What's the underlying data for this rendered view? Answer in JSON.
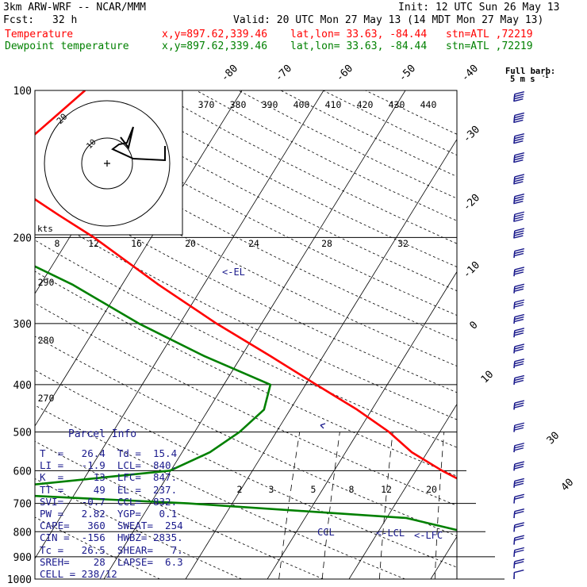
{
  "header": {
    "model": "3km ARW-WRF -- NCAR/MMM",
    "init": "Init: 12 UTC Sun 26 May 13",
    "fcst_label": "Fcst:",
    "fcst_value": "32 h",
    "valid": "Valid: 20 UTC Mon 27 May 13 (14 MDT Mon 27 May 13)",
    "temp_line": {
      "name": "Temperature",
      "xy": "x,y=897.62,339.46",
      "latlon": "lat,lon= 33.63, -84.44",
      "stn": "stn=ATL ,72219",
      "color": "#ff0000"
    },
    "dew_line": {
      "name": "Dewpoint temperature",
      "xy": "x,y=897.62,339.46",
      "latlon": "lat,lon= 33.63, -84.44",
      "stn": "stn=ATL ,72219",
      "color": "#008000"
    },
    "barb_legend_1": "Full barb:",
    "barb_legend_2": "5 m s",
    "barb_legend_exp": "-1"
  },
  "parcel_info": {
    "title": "Parcel Info",
    "rows": [
      "T  =   26.4  Td =  15.4",
      "LI =   -1.9  LCL=  840.",
      "K  =     13  LFC=  847.",
      "TT =     49  EL =  237.",
      "SVI=   -0.7  CCL=  832.",
      "PW =   2.82  YGP=   0.1",
      "CAPE=   360  SWEAT=  254",
      "CIN =  -156  HWBZ= 2835.",
      "Tc =   26.5  SHEAR=   7.",
      "SREH=    28  LAPSE=  6.3",
      "CELL = 238/12"
    ]
  },
  "hodograph": {
    "ring_label": "kts",
    "ring_values": [
      "20",
      "10"
    ]
  },
  "chart_data": {
    "type": "line",
    "title": "",
    "yscale": "log-pressure",
    "ylim": [
      1000,
      100
    ],
    "pressure_labels": [
      "100",
      "200",
      "300",
      "400",
      "500",
      "600",
      "700",
      "800",
      "900",
      "1000"
    ],
    "isotherm_labels": [
      "-80",
      "-70",
      "-60",
      "-50",
      "-40",
      "-30",
      "-20",
      "-10",
      "0",
      "10",
      "30",
      "40"
    ],
    "theta_labels": [
      "370",
      "380",
      "390",
      "400",
      "410",
      "420",
      "430",
      "440"
    ],
    "theta_side_labels": [
      "290",
      "280",
      "270"
    ],
    "mixing_labels_upper": [
      "8",
      "12",
      "16",
      "20",
      "24",
      "28",
      "32"
    ],
    "mixing_labels_lower": [
      "2",
      "3",
      "5",
      "8",
      "12",
      "20"
    ],
    "annotations": [
      "<-EL",
      "CCL",
      "<-LCL",
      "<-LFC"
    ],
    "series": [
      {
        "name": "Temperature",
        "color": "#ff0000",
        "points": [
          [
            1000,
            30.5
          ],
          [
            950,
            26.6
          ],
          [
            900,
            22.8
          ],
          [
            850,
            19.3
          ],
          [
            800,
            16.0
          ],
          [
            750,
            13.8
          ],
          [
            700,
            11.0
          ],
          [
            650,
            8.5
          ],
          [
            600,
            3.2
          ],
          [
            550,
            -1.9
          ],
          [
            500,
            -6.2
          ],
          [
            450,
            -11.8
          ],
          [
            400,
            -18.7
          ],
          [
            350,
            -26.4
          ],
          [
            300,
            -35.5
          ],
          [
            250,
            -45.5
          ],
          [
            200,
            -57.0
          ],
          [
            180,
            -63.0
          ],
          [
            160,
            -69.5
          ],
          [
            140,
            -73.5
          ],
          [
            130,
            -72.8
          ],
          [
            120,
            -71.7
          ],
          [
            110,
            -70.5
          ],
          [
            100,
            -69.2
          ]
        ]
      },
      {
        "name": "Dewpoint temperature",
        "color": "#008000",
        "points": [
          [
            1000,
            20.0
          ],
          [
            950,
            17.8
          ],
          [
            900,
            15.3
          ],
          [
            850,
            13.0
          ],
          [
            800,
            10.5
          ],
          [
            750,
            2.4
          ],
          [
            700,
            -25.4
          ],
          [
            670,
            -49.5
          ],
          [
            650,
            -49.2
          ],
          [
            600,
            -30.1
          ],
          [
            550,
            -26.6
          ],
          [
            500,
            -24.5
          ],
          [
            450,
            -23.2
          ],
          [
            400,
            -24.3
          ],
          [
            350,
            -34.5
          ],
          [
            300,
            -45.0
          ],
          [
            250,
            -56.0
          ],
          [
            200,
            -71.5
          ],
          [
            190,
            -75.5
          ],
          [
            170,
            -79.3
          ],
          [
            150,
            -83.3
          ],
          [
            130,
            -87.5
          ],
          [
            115,
            -88.8
          ],
          [
            100,
            -90.0
          ]
        ]
      }
    ],
    "wind_barbs": [
      {
        "p": 1000,
        "spd": 5,
        "dir": 200
      },
      {
        "p": 950,
        "spd": 10,
        "dir": 240
      },
      {
        "p": 900,
        "spd": 10,
        "dir": 255
      },
      {
        "p": 850,
        "spd": 10,
        "dir": 255
      },
      {
        "p": 800,
        "spd": 10,
        "dir": 255
      },
      {
        "p": 750,
        "spd": 10,
        "dir": 265
      },
      {
        "p": 700,
        "spd": 10,
        "dir": 270
      },
      {
        "p": 650,
        "spd": 15,
        "dir": 275
      },
      {
        "p": 600,
        "spd": 15,
        "dir": 275
      },
      {
        "p": 550,
        "spd": 15,
        "dir": 275
      },
      {
        "p": 500,
        "spd": 15,
        "dir": 270
      },
      {
        "p": 450,
        "spd": 15,
        "dir": 270
      },
      {
        "p": 400,
        "spd": 15,
        "dir": 270
      },
      {
        "p": 370,
        "spd": 15,
        "dir": 270
      },
      {
        "p": 345,
        "spd": 15,
        "dir": 270
      },
      {
        "p": 320,
        "spd": 15,
        "dir": 270
      },
      {
        "p": 300,
        "spd": 15,
        "dir": 270
      },
      {
        "p": 280,
        "spd": 15,
        "dir": 270
      },
      {
        "p": 260,
        "spd": 15,
        "dir": 270
      },
      {
        "p": 240,
        "spd": 15,
        "dir": 270
      },
      {
        "p": 220,
        "spd": 15,
        "dir": 270
      },
      {
        "p": 200,
        "spd": 20,
        "dir": 270
      },
      {
        "p": 185,
        "spd": 20,
        "dir": 270
      },
      {
        "p": 170,
        "spd": 20,
        "dir": 270
      },
      {
        "p": 155,
        "spd": 20,
        "dir": 270
      },
      {
        "p": 140,
        "spd": 20,
        "dir": 270
      },
      {
        "p": 128,
        "spd": 20,
        "dir": 270
      },
      {
        "p": 116,
        "spd": 20,
        "dir": 270
      },
      {
        "p": 105,
        "spd": 20,
        "dir": 270
      }
    ]
  }
}
